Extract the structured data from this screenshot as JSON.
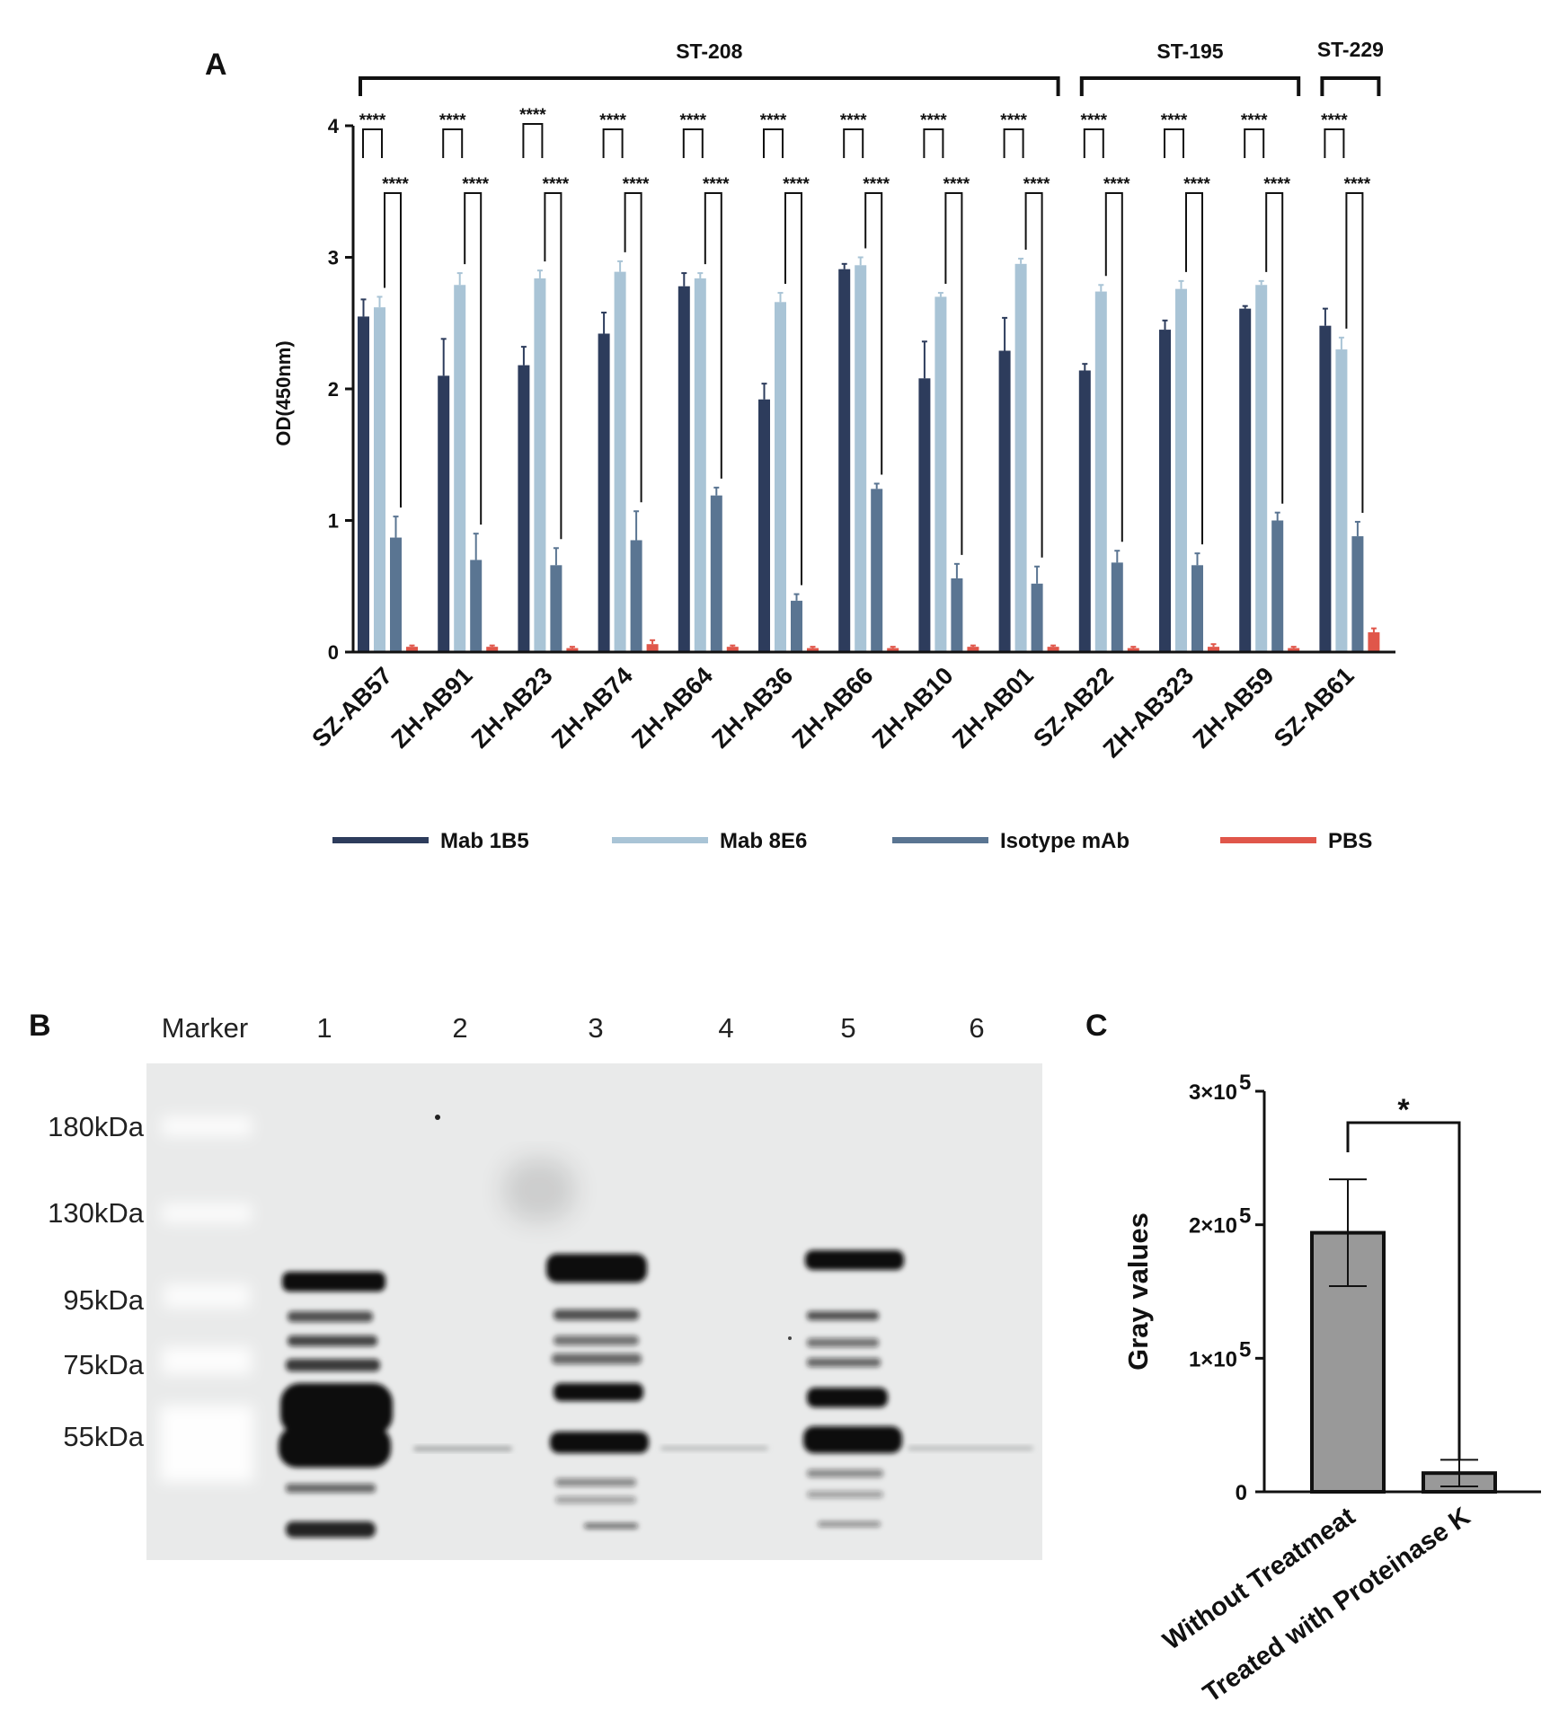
{
  "panels": {
    "a": "A",
    "b": "B",
    "c": "C"
  },
  "colors": {
    "mab1b5": "#2d3c5c",
    "mab8e6": "#a9c4d6",
    "isotype": "#5a7592",
    "pbs": "#e0564a"
  },
  "chart_data": [
    {
      "id": "A",
      "type": "bar",
      "ylabel": "OD(450nm)",
      "ylim": [
        0,
        4
      ],
      "yticks": [
        "0",
        "1",
        "2",
        "3",
        "4"
      ],
      "categories": [
        "SZ-AB57",
        "ZH-AB91",
        "ZH-AB23",
        "ZH-AB74",
        "ZH-AB64",
        "ZH-AB36",
        "ZH-AB66",
        "ZH-AB10",
        "ZH-AB01",
        "SZ-AB22",
        "ZH-AB323",
        "ZH-AB59",
        "SZ-AB61"
      ],
      "series": [
        {
          "name": "Mab 1B5",
          "color": "#2d3c5c",
          "values": [
            2.55,
            2.1,
            2.18,
            2.42,
            2.78,
            1.92,
            2.91,
            2.08,
            2.29,
            2.14,
            2.45,
            2.61,
            2.48
          ],
          "errors": [
            0.13,
            0.28,
            0.14,
            0.16,
            0.1,
            0.12,
            0.04,
            0.28,
            0.25,
            0.05,
            0.07,
            0.02,
            0.13
          ]
        },
        {
          "name": "Mab 8E6",
          "color": "#a9c4d6",
          "values": [
            2.62,
            2.79,
            2.84,
            2.89,
            2.84,
            2.66,
            2.94,
            2.7,
            2.95,
            2.74,
            2.76,
            2.79,
            2.3
          ],
          "errors": [
            0.08,
            0.09,
            0.06,
            0.08,
            0.04,
            0.07,
            0.06,
            0.03,
            0.04,
            0.05,
            0.06,
            0.03,
            0.09
          ]
        },
        {
          "name": "Isotype mAb",
          "color": "#5a7592",
          "values": [
            0.87,
            0.7,
            0.66,
            0.85,
            1.19,
            0.39,
            1.24,
            0.56,
            0.52,
            0.68,
            0.66,
            1.0,
            0.88
          ],
          "errors": [
            0.16,
            0.2,
            0.13,
            0.22,
            0.06,
            0.05,
            0.04,
            0.11,
            0.13,
            0.09,
            0.09,
            0.06,
            0.11
          ]
        },
        {
          "name": "PBS",
          "color": "#e0564a",
          "values": [
            0.04,
            0.04,
            0.03,
            0.06,
            0.04,
            0.03,
            0.03,
            0.04,
            0.04,
            0.03,
            0.04,
            0.03,
            0.15
          ],
          "errors": [
            0.01,
            0.01,
            0.01,
            0.03,
            0.01,
            0.01,
            0.01,
            0.01,
            0.01,
            0.01,
            0.02,
            0.01,
            0.03
          ]
        }
      ],
      "groups": [
        {
          "label": "ST-208",
          "from": 0,
          "to": 8
        },
        {
          "label": "ST-195",
          "from": 9,
          "to": 11
        },
        {
          "label": "ST-229",
          "from": 12,
          "to": 12
        }
      ],
      "significance": "****"
    },
    {
      "id": "C",
      "type": "bar",
      "ylabel": "Gray values",
      "ylim": [
        0,
        300000
      ],
      "yticks": [
        "0",
        "1×10",
        "2×10",
        "3×10"
      ],
      "ytick_exponent": "5",
      "categories": [
        "Without Treatmeat",
        "Treated with Proteinase K"
      ],
      "values": [
        194000,
        14000
      ],
      "errors": [
        40000,
        10000
      ],
      "significance": "*"
    }
  ],
  "blot": {
    "lanes": [
      "Marker",
      "1",
      "2",
      "3",
      "4",
      "5",
      "6"
    ],
    "markers": [
      "180kDa",
      "130kDa",
      "95kDa",
      "75kDa",
      "55kDa"
    ]
  }
}
